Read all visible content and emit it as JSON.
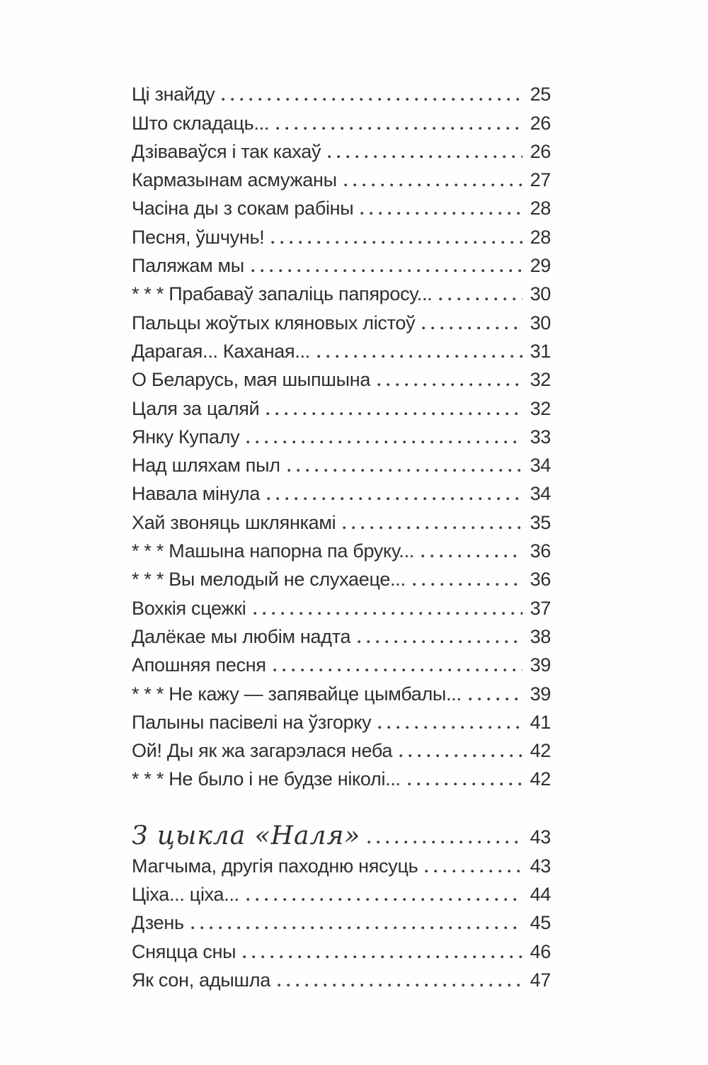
{
  "page": {
    "kind": "book-table-of-contents",
    "language": "Belarusian",
    "text_color": "#2f2f2f",
    "background_color": "#fefefe"
  },
  "entries": [
    {
      "title": "Ці знайду",
      "page": "25",
      "style": "normal"
    },
    {
      "title": "Што складаць...",
      "page": "26",
      "style": "normal"
    },
    {
      "title": "Дзіваваўся і так кахаў",
      "page": "26",
      "style": "normal"
    },
    {
      "title": "Кармазынам асмужаны",
      "page": "27",
      "style": "normal"
    },
    {
      "title": "Часіна ды з сокам рабіны",
      "page": "28",
      "style": "normal"
    },
    {
      "title": "Песня, ўшчунь!",
      "page": "28",
      "style": "normal"
    },
    {
      "title": "Паляжам мы",
      "page": "29",
      "style": "normal"
    },
    {
      "title": "* * * Прабаваў запаліць папяросу...",
      "page": "30",
      "style": "normal"
    },
    {
      "title": "Пальцы жоўтых кляновых лістоў",
      "page": "30",
      "style": "normal"
    },
    {
      "title": "Дарагая... Каханая...",
      "page": "31",
      "style": "normal"
    },
    {
      "title": "О Беларусь, мая шыпшына",
      "page": "32",
      "style": "normal"
    },
    {
      "title": "Цаля за цаляй",
      "page": "32",
      "style": "normal"
    },
    {
      "title": "Янку Купалу",
      "page": "33",
      "style": "normal"
    },
    {
      "title": "Над шляхам пыл",
      "page": "34",
      "style": "normal"
    },
    {
      "title": "Навала мінула",
      "page": "34",
      "style": "normal"
    },
    {
      "title": "Хай звоняць шклянкамі",
      "page": "35",
      "style": "normal"
    },
    {
      "title": "* * * Машына напорна па бруку...",
      "page": "36",
      "style": "normal"
    },
    {
      "title": "* * * Вы мелодый не слухаеце...",
      "page": "36",
      "style": "normal"
    },
    {
      "title": "Вохкія сцежкі",
      "page": "37",
      "style": "normal"
    },
    {
      "title": "Далёкае мы любім надта",
      "page": "38",
      "style": "normal"
    },
    {
      "title": "Апошняя песня",
      "page": "39",
      "style": "normal"
    },
    {
      "title": "* * * Не кажу — запявайце цымбалы...",
      "page": "39",
      "style": "normal"
    },
    {
      "title": "Палыны пасівелі на ўзгорку",
      "page": "41",
      "style": "normal"
    },
    {
      "title": "Ой! Ды як жа загарэлася неба",
      "page": "42",
      "style": "normal"
    },
    {
      "title": "* * * Не было і не будзе ніколі...",
      "page": "42",
      "style": "normal"
    },
    {
      "title": "З цыкла «Наля»",
      "page": "43",
      "style": "script"
    },
    {
      "title": "Магчыма, другія паходню нясуць",
      "page": "43",
      "style": "normal"
    },
    {
      "title": "Ціха... ціха...",
      "page": "44",
      "style": "normal"
    },
    {
      "title": "Дзень",
      "page": "45",
      "style": "normal"
    },
    {
      "title": "Сняцца сны",
      "page": "46",
      "style": "normal"
    },
    {
      "title": "Як сон, адышла",
      "page": "47",
      "style": "normal"
    }
  ]
}
